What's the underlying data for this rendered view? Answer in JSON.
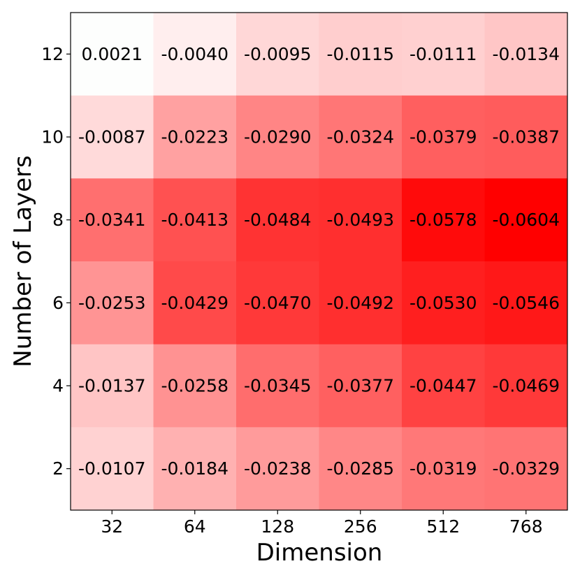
{
  "chart_data": {
    "type": "heatmap",
    "title": "",
    "xlabel": "Dimension",
    "ylabel": "Number of Layers",
    "x_categories": [
      "32",
      "64",
      "128",
      "256",
      "512",
      "768"
    ],
    "y_categories": [
      "12",
      "10",
      "8",
      "6",
      "4",
      "2"
    ],
    "values": [
      [
        0.0021,
        -0.004,
        -0.0095,
        -0.0115,
        -0.0111,
        -0.0134
      ],
      [
        -0.0087,
        -0.0223,
        -0.029,
        -0.0324,
        -0.0379,
        -0.0387
      ],
      [
        -0.0341,
        -0.0413,
        -0.0484,
        -0.0493,
        -0.0578,
        -0.0604
      ],
      [
        -0.0253,
        -0.0429,
        -0.047,
        -0.0492,
        -0.053,
        -0.0546
      ],
      [
        -0.0137,
        -0.0258,
        -0.0345,
        -0.0377,
        -0.0447,
        -0.0469
      ],
      [
        -0.0107,
        -0.0184,
        -0.0238,
        -0.0285,
        -0.0319,
        -0.0329
      ]
    ],
    "value_format": "4 decimals",
    "colormap": {
      "negative": "#ff0000",
      "positive": "#00c000",
      "neutral": "#ffffff",
      "vmin": -0.0604,
      "vmax": 0.0604
    },
    "grid": false,
    "legend": "none"
  }
}
